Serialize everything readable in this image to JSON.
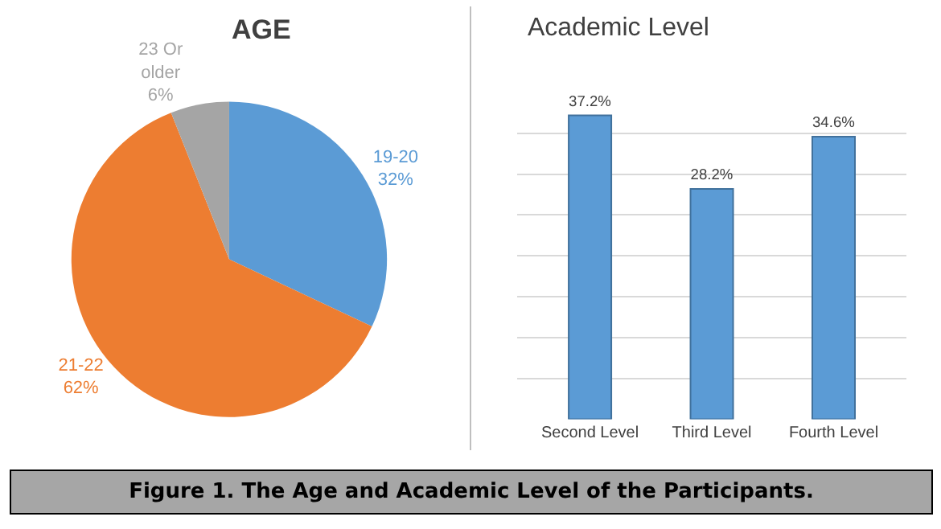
{
  "chart_data": [
    {
      "type": "pie",
      "title": "AGE",
      "categories": [
        "19-20",
        "21-22",
        "23 Or older"
      ],
      "values": [
        32,
        62,
        6
      ],
      "value_labels": [
        "32%",
        "62%",
        "6%"
      ],
      "colors": [
        "#5b9bd5",
        "#ed7d31",
        "#a5a5a5"
      ],
      "annotations": [
        "Figure 1. The Age and Academic Level of the Participants."
      ]
    },
    {
      "type": "bar",
      "title": "Academic Level",
      "categories": [
        "Second Level",
        "Third Level",
        "Fourth Level"
      ],
      "values": [
        37.2,
        28.2,
        34.6
      ],
      "value_labels": [
        "37.2%",
        "28.2%",
        "34.6%"
      ],
      "color": "#5b9bd5",
      "grid": "y",
      "tick_labels": "x"
    }
  ]
}
